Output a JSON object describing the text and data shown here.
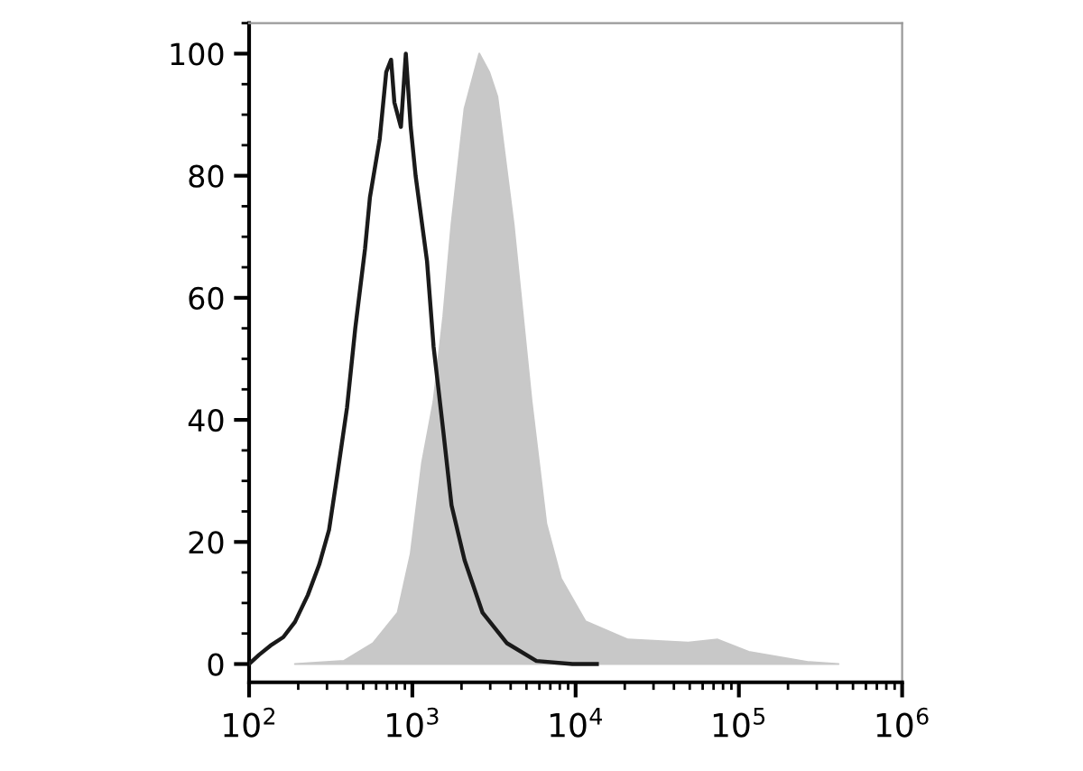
{
  "chart_data": {
    "type": "area",
    "log": "x",
    "xlim": [
      100,
      1000000
    ],
    "xticks": [
      {
        "value": 100,
        "label": "10$^{2}$"
      },
      {
        "value": 1000,
        "label": "10$^{3}$"
      },
      {
        "value": 10000,
        "label": "10$^{4}$"
      },
      {
        "value": 100000,
        "label": "10$^{5}$"
      },
      {
        "value": 1000000,
        "label": "10$^{6}$"
      }
    ],
    "ylim": [
      -3,
      105
    ],
    "yticks": [
      0,
      20,
      40,
      60,
      80,
      100
    ],
    "grid": false,
    "legend": false,
    "series": [
      {
        "color": "#c8c8c8",
        "x": [
          191,
          380,
          575,
          813,
          977,
          1148,
          1349,
          1549,
          1738,
          2089,
          2344,
          2570,
          2951,
          3311,
          4169,
          5370,
          6607,
          8128,
          11480,
          20890,
          48980,
          74130,
          114800,
          269200,
          407400
        ],
        "values": [
          0,
          0.5,
          3.4,
          8.4,
          18,
          33,
          43,
          57,
          72,
          91,
          96,
          100,
          97,
          93,
          72,
          43,
          23,
          14,
          7,
          4,
          3.5,
          4,
          2,
          0.3,
          0
        ]
      },
      {
        "type": "line",
        "color": "#1a1a1a",
        "x": [
          100,
          115,
          135,
          162,
          191,
          229,
          269,
          309,
          347,
          398,
          447,
          513,
          550,
          631,
          692,
          741,
          776,
          851,
          912,
          977,
          1047,
          1230,
          1349,
          1549,
          1738,
          2089,
          2692,
          3802,
          5754,
          9550,
          13490
        ],
        "values": [
          0,
          1.5,
          3,
          4.4,
          6.9,
          11.3,
          16.3,
          22,
          31,
          42,
          55,
          68,
          76.5,
          86,
          97,
          99,
          92,
          88,
          100,
          88,
          80,
          66,
          52,
          38,
          26,
          17,
          8.4,
          3.4,
          0.5,
          0,
          0
        ]
      }
    ]
  }
}
